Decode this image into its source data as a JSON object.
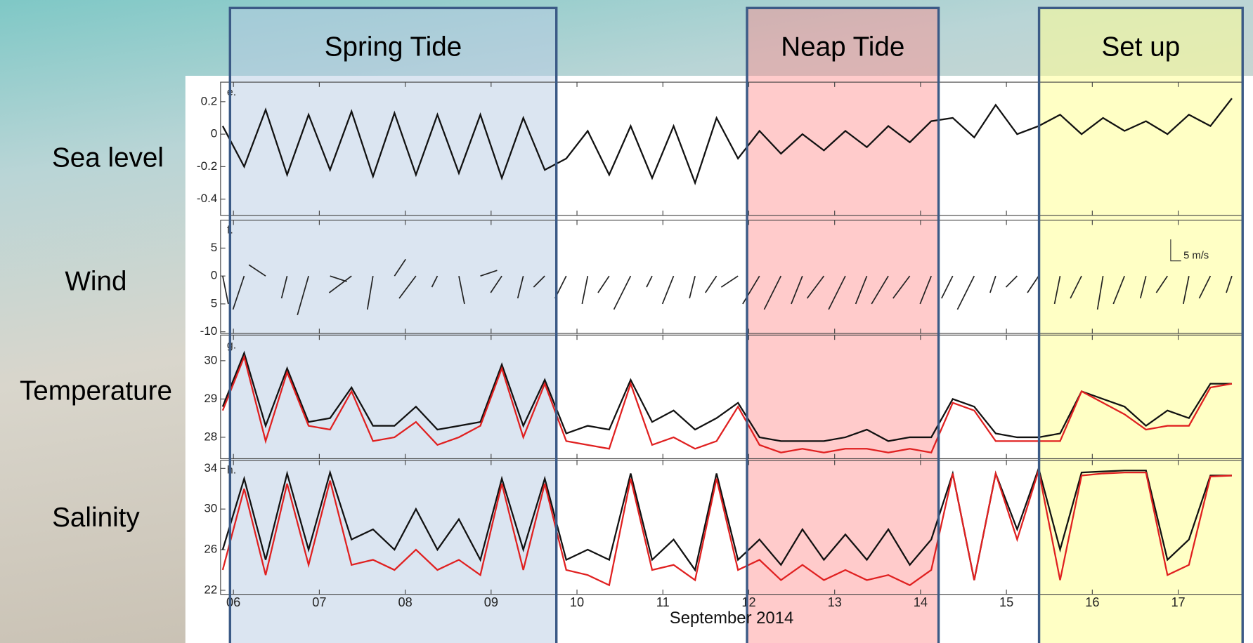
{
  "row_labels": [
    "Sea level",
    "Wind",
    "Temperature",
    "Salinity"
  ],
  "highlights": [
    {
      "label": "Spring Tide",
      "x": [
        5.96,
        9.76
      ],
      "color": "rgba(184,204,228,0.5)"
    },
    {
      "label": "Neap Tide",
      "x": [
        11.98,
        14.21
      ],
      "color": "rgba(255,140,140,0.45)"
    },
    {
      "label": "Set up",
      "x": [
        15.38,
        17.75
      ],
      "color": "rgba(255,255,150,0.55)"
    }
  ],
  "chart_data": [
    {
      "type": "line",
      "annotation": "e.",
      "x": [
        5.875,
        6.125,
        6.375,
        6.625,
        6.875,
        7.125,
        7.375,
        7.625,
        7.875,
        8.125,
        8.375,
        8.625,
        8.875,
        9.125,
        9.375,
        9.625,
        9.875,
        10.125,
        10.375,
        10.625,
        10.875,
        11.125,
        11.375,
        11.625,
        11.875,
        12.125,
        12.375,
        12.625,
        12.875,
        13.125,
        13.375,
        13.625,
        13.875,
        14.125,
        14.375,
        14.625,
        14.875,
        15.125,
        15.375,
        15.625,
        15.875,
        16.125,
        16.375,
        16.625,
        16.875,
        17.125,
        17.375,
        17.625
      ],
      "xlim": [
        5.85,
        17.75
      ],
      "ylim": [
        -0.5,
        0.32
      ],
      "yticks": [
        0.2,
        0,
        -0.2,
        -0.4
      ],
      "series": [
        {
          "color": "#111111",
          "values": [
            0.05,
            -0.2,
            0.15,
            -0.25,
            0.12,
            -0.22,
            0.14,
            -0.26,
            0.13,
            -0.25,
            0.12,
            -0.24,
            0.12,
            -0.27,
            0.1,
            -0.22,
            -0.15,
            0.02,
            -0.25,
            0.05,
            -0.27,
            0.05,
            -0.3,
            0.1,
            -0.15,
            0.02,
            -0.12,
            0.0,
            -0.1,
            0.02,
            -0.08,
            0.05,
            -0.05,
            0.08,
            0.1,
            -0.02,
            0.18,
            0.0,
            0.05,
            0.12,
            0.0,
            0.1,
            0.02,
            0.08,
            0.0,
            0.12,
            0.05,
            0.22
          ]
        }
      ]
    },
    {
      "type": "quiver",
      "annotation": "f.",
      "scale_label": "5 m/s",
      "color": "#222222",
      "x": [
        5.875,
        6.125,
        6.375,
        6.625,
        6.875,
        7.125,
        7.375,
        7.625,
        7.875,
        8.125,
        8.375,
        8.625,
        8.875,
        9.125,
        9.375,
        9.625,
        9.875,
        10.125,
        10.375,
        10.625,
        10.875,
        11.125,
        11.375,
        11.625,
        11.875,
        12.125,
        12.375,
        12.625,
        12.875,
        13.125,
        13.375,
        13.625,
        13.875,
        14.125,
        14.375,
        14.625,
        14.875,
        15.125,
        15.375,
        15.625,
        15.875,
        16.125,
        16.375,
        16.625,
        16.875,
        17.125,
        17.375,
        17.625
      ],
      "u": [
        1,
        -2,
        -3,
        -1,
        -2,
        3,
        -4,
        -1,
        2,
        -3,
        -1,
        1,
        3,
        -2,
        -1,
        -2,
        -2,
        -1,
        -2,
        -3,
        -1,
        -2,
        -1,
        -2,
        -3,
        -3,
        -3,
        -2,
        -3,
        -3,
        -2,
        -3,
        -3,
        -2,
        -2,
        -3,
        -1,
        -2,
        -2,
        -1,
        -2,
        -1,
        -2,
        -1,
        -2,
        -1,
        -2,
        -1
      ],
      "v": [
        -5,
        -6,
        2,
        -4,
        -7,
        -1,
        -3,
        -6,
        3,
        -4,
        -2,
        -5,
        1,
        -3,
        -4,
        -2,
        -4,
        -5,
        -3,
        -6,
        -2,
        -5,
        -4,
        -3,
        -2,
        -5,
        -6,
        -5,
        -4,
        -6,
        -5,
        -5,
        -4,
        -5,
        -4,
        -6,
        -3,
        -2,
        -3,
        -5,
        -4,
        -6,
        -5,
        -4,
        -3,
        -5,
        -4,
        -3
      ],
      "xlim": [
        5.85,
        17.75
      ],
      "ylim": [
        -10.3,
        10
      ],
      "yticks": [
        5,
        0,
        {
          "value": -5,
          "label": "5"
        },
        -10
      ]
    },
    {
      "type": "line",
      "annotation": "g.",
      "x": [
        5.875,
        6.125,
        6.375,
        6.625,
        6.875,
        7.125,
        7.375,
        7.625,
        7.875,
        8.125,
        8.375,
        8.625,
        8.875,
        9.125,
        9.375,
        9.625,
        9.875,
        10.125,
        10.375,
        10.625,
        10.875,
        11.125,
        11.375,
        11.625,
        11.875,
        12.125,
        12.375,
        12.625,
        12.875,
        13.125,
        13.375,
        13.625,
        13.875,
        14.125,
        14.375,
        14.625,
        14.875,
        15.125,
        15.375,
        15.625,
        15.875,
        16.125,
        16.375,
        16.625,
        16.875,
        17.125,
        17.375,
        17.625
      ],
      "xlim": [
        5.85,
        17.75
      ],
      "ylim": [
        27.44,
        30.67
      ],
      "yticks": [
        28,
        29,
        30
      ],
      "series": [
        {
          "color": "#111111",
          "values": [
            28.8,
            30.2,
            28.3,
            29.8,
            28.4,
            28.5,
            29.3,
            28.3,
            28.3,
            28.8,
            28.2,
            28.3,
            28.4,
            29.9,
            28.3,
            29.5,
            28.1,
            28.3,
            28.2,
            29.5,
            28.4,
            28.7,
            28.2,
            28.5,
            28.9,
            28.0,
            27.9,
            27.9,
            27.9,
            28.0,
            28.2,
            27.9,
            28.0,
            28.0,
            29.0,
            28.8,
            28.1,
            28.0,
            28.0,
            28.1,
            29.2,
            29.0,
            28.8,
            28.3,
            28.7,
            28.5,
            29.4,
            29.4
          ]
        },
        {
          "color": "#e02020",
          "values": [
            28.7,
            30.1,
            27.9,
            29.7,
            28.3,
            28.2,
            29.2,
            27.9,
            28.0,
            28.4,
            27.8,
            28.0,
            28.3,
            29.8,
            28.0,
            29.4,
            27.9,
            27.8,
            27.7,
            29.4,
            27.8,
            28.0,
            27.7,
            27.9,
            28.8,
            27.8,
            27.6,
            27.7,
            27.6,
            27.7,
            27.7,
            27.6,
            27.7,
            27.6,
            28.9,
            28.7,
            27.9,
            27.9,
            27.9,
            27.9,
            29.2,
            28.9,
            28.6,
            28.2,
            28.3,
            28.3,
            29.3,
            29.4
          ]
        }
      ]
    },
    {
      "type": "line",
      "annotation": "h.",
      "xlabel": "September 2014",
      "x": [
        5.875,
        6.125,
        6.375,
        6.625,
        6.875,
        7.125,
        7.375,
        7.625,
        7.875,
        8.125,
        8.375,
        8.625,
        8.875,
        9.125,
        9.375,
        9.625,
        9.875,
        10.125,
        10.375,
        10.625,
        10.875,
        11.125,
        11.375,
        11.625,
        11.875,
        12.125,
        12.375,
        12.625,
        12.875,
        13.125,
        13.375,
        13.625,
        13.875,
        14.125,
        14.375,
        14.625,
        14.875,
        15.125,
        15.375,
        15.625,
        15.875,
        16.125,
        16.375,
        16.625,
        16.875,
        17.125,
        17.375,
        17.625
      ],
      "xlim": [
        5.85,
        17.75
      ],
      "xticks": [
        {
          "value": 6,
          "label": "06"
        },
        {
          "value": 7,
          "label": "07"
        },
        {
          "value": 8,
          "label": "08"
        },
        {
          "value": 9,
          "label": "09"
        },
        10,
        11,
        12,
        13,
        14,
        15,
        16,
        17
      ],
      "ylim": [
        21.6,
        34.8
      ],
      "yticks": [
        22,
        26,
        30,
        34
      ],
      "series": [
        {
          "color": "#111111",
          "values": [
            26,
            33,
            25,
            33.5,
            26,
            33.6,
            27,
            28,
            26,
            30,
            26,
            29,
            25,
            33,
            26,
            33,
            25,
            26,
            25,
            33.5,
            25,
            27,
            24,
            33.5,
            25,
            27,
            24.5,
            28,
            25,
            27.5,
            25,
            28,
            24.5,
            27,
            33.5,
            23,
            33.5,
            28,
            34,
            26,
            33.6,
            33.7,
            33.8,
            33.8,
            25,
            27,
            33.3,
            33.3
          ]
        },
        {
          "color": "#e02020",
          "values": [
            24,
            32,
            23.5,
            32.5,
            24.5,
            32.8,
            24.5,
            25,
            24,
            26,
            24,
            25,
            23.5,
            32.5,
            24,
            32.5,
            24,
            23.5,
            22.5,
            33,
            24,
            24.5,
            23,
            33,
            24,
            25,
            23,
            24.5,
            23,
            24,
            23,
            23.5,
            22.5,
            24,
            33.5,
            23,
            33.5,
            27,
            33.8,
            23,
            33.3,
            33.5,
            33.6,
            33.6,
            23.5,
            24.5,
            33.2,
            33.3
          ]
        }
      ]
    }
  ]
}
